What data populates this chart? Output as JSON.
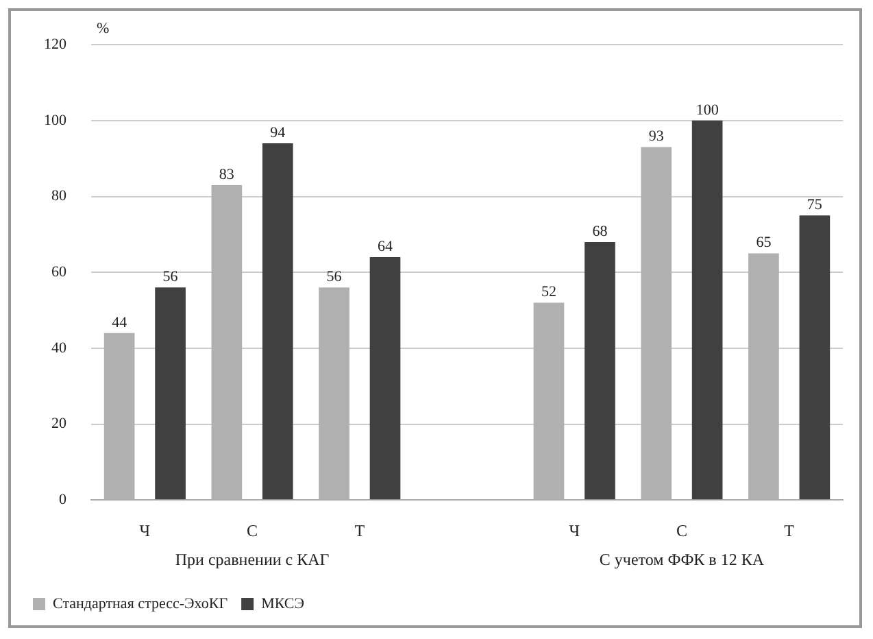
{
  "chart_data": {
    "type": "bar",
    "ylabel": "%",
    "categories": [
      "Ч",
      "С",
      "Т",
      null,
      "Ч",
      "С",
      "Т"
    ],
    "series": [
      {
        "name": "Стандартная стресс-ЭхоКГ",
        "color": "#b0b0b0",
        "values": [
          44,
          83,
          56,
          null,
          52,
          93,
          65
        ]
      },
      {
        "name": "МКСЭ",
        "color": "#404040",
        "values": [
          56,
          94,
          64,
          null,
          68,
          100,
          75
        ]
      }
    ],
    "ylim": [
      0,
      120
    ],
    "yticks": [
      0,
      20,
      40,
      60,
      80,
      100,
      120
    ],
    "grid": "y",
    "legend": "bottom left",
    "data_labels": true,
    "annotations": [
      "При сравнении с КАГ",
      "С учетом ФФК в 12 КА"
    ]
  }
}
